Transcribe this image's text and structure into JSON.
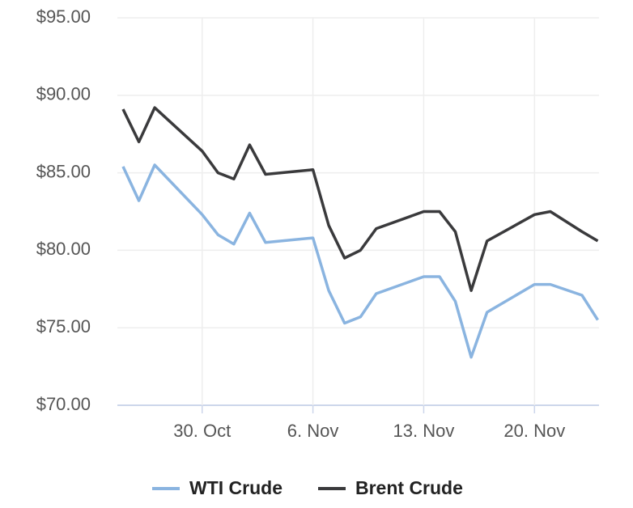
{
  "chart_data": {
    "type": "line",
    "x": [
      "25. Oct",
      "26. Oct",
      "27. Oct",
      "30. Oct",
      "31. Oct",
      "1. Nov",
      "2. Nov",
      "3. Nov",
      "6. Nov",
      "7. Nov",
      "8. Nov",
      "9. Nov",
      "10. Nov",
      "13. Nov",
      "14. Nov",
      "15. Nov",
      "16. Nov",
      "17. Nov",
      "20. Nov",
      "21. Nov",
      "23. Nov",
      "24. Nov"
    ],
    "series": [
      {
        "name": "WTI Crude",
        "color": "#8ab4e0",
        "values": [
          85.4,
          83.2,
          85.5,
          82.3,
          81.0,
          80.4,
          82.4,
          80.5,
          80.8,
          77.4,
          75.3,
          75.7,
          77.2,
          78.3,
          78.3,
          76.7,
          73.1,
          76.0,
          77.8,
          77.8,
          77.1,
          75.5
        ]
      },
      {
        "name": "Brent Crude",
        "color": "#3a3a3c",
        "values": [
          89.1,
          87.0,
          89.2,
          86.4,
          85.0,
          84.6,
          86.8,
          84.9,
          85.2,
          81.6,
          79.5,
          80.0,
          81.4,
          82.5,
          82.5,
          81.2,
          77.4,
          80.6,
          82.3,
          82.5,
          81.2,
          80.6
        ]
      }
    ],
    "ylim": [
      70,
      95
    ],
    "yticks": [
      {
        "value": 70,
        "label": "$70.00"
      },
      {
        "value": 75,
        "label": "$75.00"
      },
      {
        "value": 80,
        "label": "$80.00"
      },
      {
        "value": 85,
        "label": "$85.00"
      },
      {
        "value": 90,
        "label": "$90.00"
      },
      {
        "value": 95,
        "label": "$95.00"
      }
    ],
    "xticks": [
      "30. Oct",
      "6. Nov",
      "13. Nov",
      "20. Nov"
    ],
    "grid": true
  }
}
